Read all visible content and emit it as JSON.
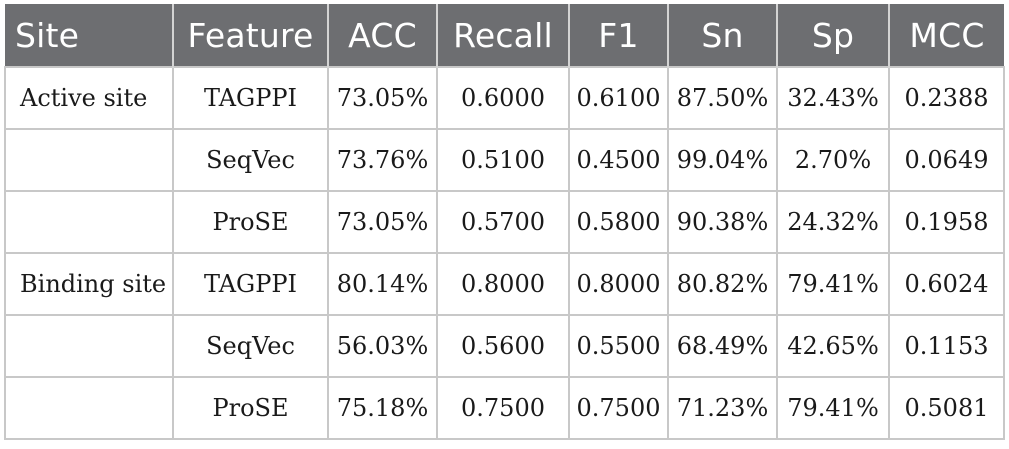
{
  "table": {
    "headers": [
      "Site",
      "Feature",
      "ACC",
      "Recall",
      "F1",
      "Sn",
      "Sp",
      "MCC"
    ],
    "rows": [
      [
        "Active site",
        "TAGPPI",
        "73.05%",
        "0.6000",
        "0.6100",
        "87.50%",
        "32.43%",
        "0.2388"
      ],
      [
        "",
        "SeqVec",
        "73.76%",
        "0.5100",
        "0.4500",
        "99.04%",
        "2.70%",
        "0.0649"
      ],
      [
        "",
        "ProSE",
        "73.05%",
        "0.5700",
        "0.5800",
        "90.38%",
        "24.32%",
        "0.1958"
      ],
      [
        "Binding site",
        "TAGPPI",
        "80.14%",
        "0.8000",
        "0.8000",
        "80.82%",
        "79.41%",
        "0.6024"
      ],
      [
        "",
        "SeqVec",
        "56.03%",
        "0.5600",
        "0.5500",
        "68.49%",
        "42.65%",
        "0.1153"
      ],
      [
        "",
        "ProSE",
        "75.18%",
        "0.7500",
        "0.7500",
        "71.23%",
        "79.41%",
        "0.5081"
      ]
    ]
  },
  "colors": {
    "header_bg": "#6d6e71",
    "header_text": "#ffffff",
    "grid": "#c8c8c8"
  }
}
